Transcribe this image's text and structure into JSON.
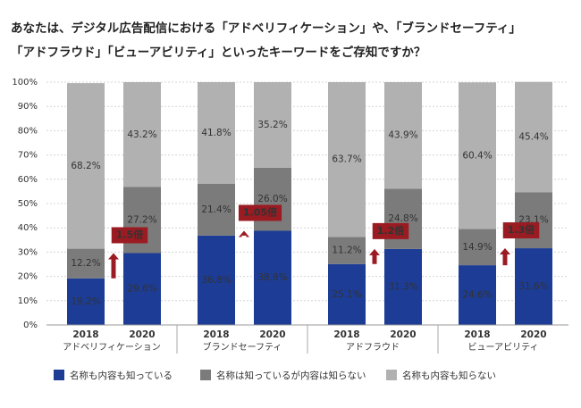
{
  "chart_data": {
    "type": "stacked_bar",
    "title_lines": [
      "あなたは、デジタル広告配信における「アドベリフィケーション」や、「ブランドセーフティ」",
      "「アドフラウド」「ビューアビリティ」といったキーワードをご存知ですか？"
    ],
    "categories": [
      "2018",
      "2020",
      "2018",
      "2020",
      "2018",
      "2020",
      "2018",
      "2020"
    ],
    "groups": [
      "アドベリフィケーション",
      "ブランドセーフティ",
      "アドフラウド",
      "ビューアビリティ"
    ],
    "series": [
      {
        "name": "名称も内容も知っている",
        "color": "#1c3c96",
        "values": [
          19.2,
          29.6,
          36.8,
          38.8,
          25.1,
          31.3,
          24.6,
          31.6
        ],
        "value_labels": [
          "19.2%",
          "29.6%",
          "36.8%",
          "38.8%",
          "25.1%",
          "31.3%",
          "24.6%",
          "31.6%"
        ]
      },
      {
        "name": "名称は知っているが内容は知らない",
        "color": "#7b7b7b",
        "values": [
          12.2,
          27.2,
          21.4,
          26.0,
          11.2,
          24.8,
          14.9,
          23.1
        ],
        "value_labels": [
          "12.2%",
          "27.2%",
          "21.4%",
          "26.0%",
          "11.2%",
          "24.8%",
          "14.9%",
          "23.1%"
        ]
      },
      {
        "name": "名称も内容も知らない",
        "color": "#b1b1b1",
        "values": [
          68.2,
          43.2,
          41.8,
          35.2,
          63.7,
          43.9,
          60.4,
          45.4
        ],
        "value_labels": [
          "68.2%",
          "43.2%",
          "41.8%",
          "35.2%",
          "63.7%",
          "43.9%",
          "60.4%",
          "45.4%"
        ]
      }
    ],
    "annotations": [
      "1.5倍",
      "1.05倍",
      "1.2倍",
      "1.3倍"
    ],
    "annotation_color": "#9b1b22",
    "ylim": [
      0,
      100
    ],
    "yticks": [
      {
        "value": 0,
        "label": "0%"
      },
      {
        "value": 10,
        "label": "10%"
      },
      {
        "value": 20,
        "label": "20%"
      },
      {
        "value": 30,
        "label": "30%"
      },
      {
        "value": 40,
        "label": "40%"
      },
      {
        "value": 50,
        "label": "50%"
      },
      {
        "value": 60,
        "label": "60%"
      },
      {
        "value": 70,
        "label": "70%"
      },
      {
        "value": 80,
        "label": "80%"
      },
      {
        "value": 90,
        "label": "90%"
      },
      {
        "value": 100,
        "label": "100%"
      }
    ],
    "grid": true
  }
}
